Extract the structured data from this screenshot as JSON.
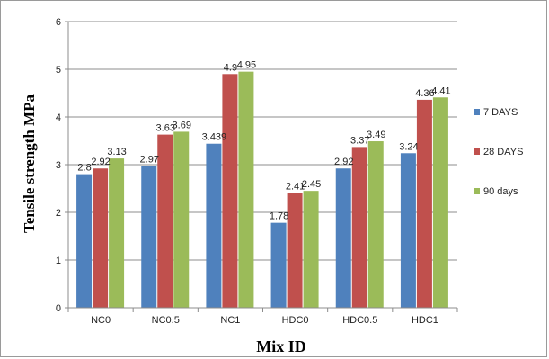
{
  "chart_data": {
    "type": "bar",
    "title": "",
    "xlabel": "Mix ID",
    "ylabel": "Tensile strength  MPa",
    "ylim": [
      0,
      6
    ],
    "yticks": [
      "0",
      "1",
      "2",
      "3",
      "4",
      "5",
      "6"
    ],
    "grid": "horizontal major gridlines",
    "legend_position": "right",
    "categories": [
      "NC0",
      "NC0.5",
      "NC1",
      "HDC0",
      "HDC0.5",
      "HDC1"
    ],
    "series": [
      {
        "name": "7 DAYS",
        "color": "#4f81bd",
        "values": [
          2.8,
          2.97,
          3.439,
          1.78,
          2.92,
          3.24
        ],
        "labels": [
          "2.8",
          "2.97",
          "3.439",
          "1.78",
          "2.92",
          "3.24"
        ]
      },
      {
        "name": "28 DAYS",
        "color": "#c0504d",
        "values": [
          2.92,
          3.63,
          4.9,
          2.41,
          3.37,
          4.36
        ],
        "labels": [
          "2.92",
          "3.63",
          "4.9",
          "2.41",
          "3.37",
          "4.36"
        ]
      },
      {
        "name": "90 days",
        "color": "#9bbb59",
        "values": [
          3.13,
          3.69,
          4.95,
          2.45,
          3.49,
          4.41
        ],
        "labels": [
          "3.13",
          "3.69",
          "4.95",
          "2.45",
          "3.49",
          "4.41"
        ]
      }
    ]
  }
}
